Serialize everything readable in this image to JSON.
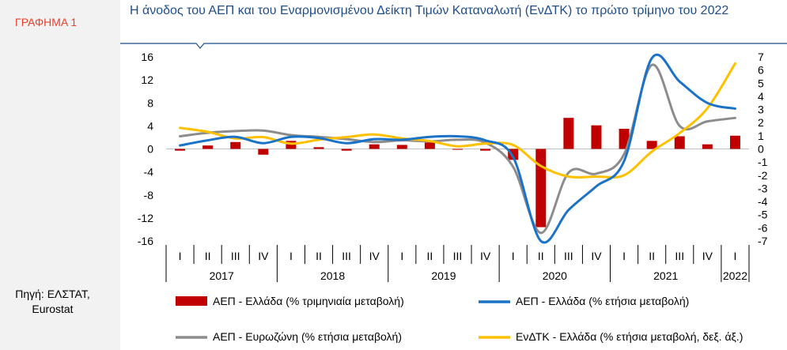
{
  "figure": {
    "label": "ΓΡΑΦΗΜΑ 1",
    "source_line1": "Πηγή: ΕΛΣΤΑΤ,",
    "source_line2": "Eurostat"
  },
  "chart_data": {
    "type": "bar+line",
    "title": "Η άνοδος του ΑΕΠ και του Εναρμονισμένου Δείκτη Τιμών Καταναλωτή (ΕνΔΤΚ) το πρώτο τρίμηνο του 2022",
    "quarters": [
      "I",
      "II",
      "III",
      "IV",
      "I",
      "II",
      "III",
      "IV",
      "I",
      "II",
      "III",
      "IV",
      "I",
      "II",
      "III",
      "IV",
      "I",
      "II",
      "III",
      "IV",
      "I"
    ],
    "years": [
      {
        "label": "2017",
        "count": 4
      },
      {
        "label": "2018",
        "count": 4
      },
      {
        "label": "2019",
        "count": 4
      },
      {
        "label": "2020",
        "count": 4
      },
      {
        "label": "2021",
        "count": 4
      },
      {
        "label": "2022",
        "count": 1
      }
    ],
    "left_axis": {
      "min": -16,
      "max": 16,
      "ticks": [
        16,
        12,
        8,
        4,
        0,
        -4,
        -8,
        -12,
        -16
      ]
    },
    "right_axis": {
      "min": -7,
      "max": 7,
      "ticks": [
        7,
        6,
        5,
        4,
        3,
        2,
        1,
        0,
        -1,
        -2,
        -3,
        -4,
        -5,
        -6,
        -7
      ]
    },
    "series": [
      {
        "name": "ΑΕΠ - Ελλάδα (% τριμηνιαία μεταβολή)",
        "kind": "bar",
        "axis": "left",
        "color": "#c00000",
        "values": [
          -0.3,
          0.6,
          1.2,
          -1.0,
          1.4,
          0.3,
          -0.3,
          0.8,
          0.7,
          1.1,
          -0.1,
          -0.3,
          -1.9,
          -13.6,
          5.4,
          4.1,
          3.5,
          1.4,
          2.2,
          0.8,
          2.3
        ]
      },
      {
        "name": "ΑΕΠ - Ελλάδα (% ετήσια μεταβολή)",
        "kind": "line",
        "axis": "left",
        "color": "#1a73c7",
        "values": [
          0.6,
          1.5,
          2.1,
          1.0,
          2.1,
          1.9,
          1.0,
          1.7,
          1.6,
          2.1,
          2.2,
          1.5,
          -1.4,
          -16.0,
          -10.6,
          -6.5,
          -2.1,
          15.8,
          11.7,
          8.0,
          7.0
        ]
      },
      {
        "name": "ΑΕΠ - Ευρωζώνη (% ετήσια μεταβολή)",
        "kind": "line",
        "axis": "left",
        "color": "#8c8c8c",
        "values": [
          2.2,
          2.8,
          3.1,
          3.2,
          2.4,
          2.1,
          1.7,
          1.2,
          1.5,
          1.3,
          1.6,
          1.1,
          -3.1,
          -14.6,
          -4.1,
          -4.3,
          -0.9,
          14.6,
          4.0,
          4.8,
          5.4
        ]
      },
      {
        "name": "ΕνΔΤΚ - Ελλάδα (% ετήσια μεταβολή, δεξ. άξ.)",
        "kind": "line",
        "axis": "right",
        "color": "#ffc000",
        "values": [
          1.6,
          1.3,
          0.8,
          0.9,
          0.4,
          0.7,
          0.9,
          1.1,
          0.8,
          0.6,
          0.2,
          0.4,
          0.3,
          -1.3,
          -2.1,
          -2.1,
          -2.0,
          -0.2,
          1.2,
          3.1,
          6.5
        ]
      }
    ]
  }
}
